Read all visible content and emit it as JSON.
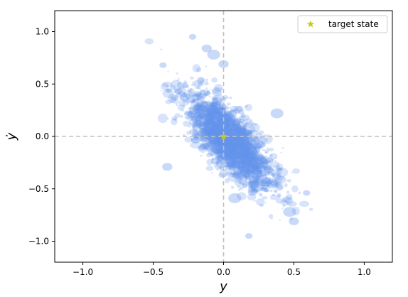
{
  "chart_data": {
    "type": "scatter",
    "title": "",
    "xlabel": "y",
    "ylabel": "ẏ",
    "xlim": [
      -1.2,
      1.2
    ],
    "ylim": [
      -1.2,
      1.2
    ],
    "xticks": [
      -1.0,
      -0.5,
      0.0,
      0.5,
      1.0
    ],
    "yticks": [
      -1.0,
      -0.5,
      0.0,
      0.5,
      1.0
    ],
    "xtick_labels": [
      "−1.0",
      "−0.5",
      "0.0",
      "0.5",
      "1.0"
    ],
    "ytick_labels": [
      "−1.0",
      "−0.5",
      "0.0",
      "0.5",
      "1.0"
    ],
    "grid": false,
    "reference_lines": {
      "x": 0.0,
      "y": 0.0,
      "style": "dashed",
      "color": "#c0c0c0"
    },
    "legend": {
      "position": "top-right",
      "entries": [
        "target state"
      ]
    },
    "series": [
      {
        "name": "",
        "marker": "ellipse",
        "color": "#6495ed",
        "alpha": 0.25,
        "distribution": {
          "center": [
            0.05,
            -0.05
          ],
          "std_x": 0.15,
          "std_y": 0.22,
          "correlation": -0.75,
          "n_points": 2600
        },
        "notable_points": [
          {
            "x": -0.22,
            "y": 0.95
          },
          {
            "x": -0.12,
            "y": 0.84
          },
          {
            "x": -0.07,
            "y": 0.78
          },
          {
            "x": -0.43,
            "y": 0.68
          },
          {
            "x": 0.0,
            "y": 0.69
          },
          {
            "x": 0.38,
            "y": 0.22
          },
          {
            "x": 0.18,
            "y": -0.95
          },
          {
            "x": 0.5,
            "y": -0.81
          },
          {
            "x": 0.47,
            "y": -0.72
          },
          {
            "x": 0.59,
            "y": -0.54
          },
          {
            "x": -0.4,
            "y": -0.29
          },
          {
            "x": 0.08,
            "y": -0.59
          }
        ]
      },
      {
        "name": "target state",
        "marker": "star",
        "color": "#c8c820",
        "points": [
          {
            "x": 0.0,
            "y": 0.0
          }
        ]
      }
    ]
  }
}
